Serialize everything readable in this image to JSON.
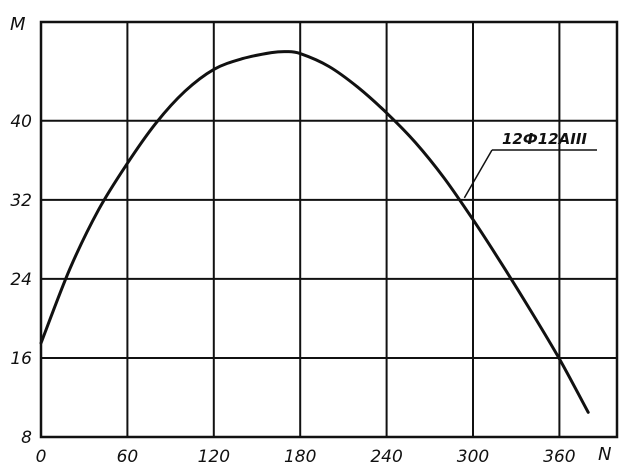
{
  "chart_data": {
    "type": "line",
    "title": "",
    "xlabel": "N",
    "ylabel": "M",
    "xlim": [
      0,
      400
    ],
    "ylim": [
      8,
      50
    ],
    "grid": true,
    "x_ticks": [
      0,
      60,
      120,
      180,
      240,
      300,
      360
    ],
    "y_ticks": [
      8,
      16,
      24,
      32,
      40
    ],
    "x_tick_labels": [
      "0",
      "60",
      "120",
      "180",
      "240",
      "300",
      "360"
    ],
    "y_tick_labels": [
      "8",
      "16",
      "24",
      "32",
      "40"
    ],
    "series": [
      {
        "name": "12Ф12АIII",
        "x": [
          0,
          20,
          40,
          60,
          80,
          100,
          120,
          140,
          160,
          170,
          180,
          200,
          220,
          240,
          260,
          280,
          300,
          320,
          340,
          360,
          380
        ],
        "y": [
          17.5,
          25.0,
          31.0,
          35.7,
          39.8,
          43.0,
          45.2,
          46.3,
          46.9,
          47.0,
          46.8,
          45.5,
          43.4,
          40.8,
          37.8,
          34.2,
          30.0,
          25.5,
          20.8,
          15.9,
          10.5
        ]
      }
    ],
    "annotations": [
      {
        "text": "12Ф12АIII",
        "points_to": {
          "x": 294,
          "y": 32.2
        }
      }
    ],
    "colors": {
      "line": "#111111",
      "grid": "#111111",
      "background": "#ffffff"
    }
  }
}
